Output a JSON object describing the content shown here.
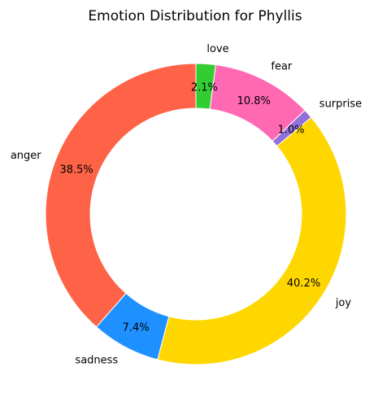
{
  "chart_data": {
    "type": "pie",
    "style": "donut",
    "title": "Emotion Distribution for Phyllis",
    "start_angle_deg": 90,
    "direction": "counterclockwise",
    "slices": [
      {
        "label": "anger",
        "value": 38.5,
        "pct_label": "38.5%",
        "color": "#FF6347"
      },
      {
        "label": "sadness",
        "value": 7.4,
        "pct_label": "7.4%",
        "color": "#1E90FF"
      },
      {
        "label": "joy",
        "value": 40.2,
        "pct_label": "40.2%",
        "color": "#FFD700"
      },
      {
        "label": "surprise",
        "value": 1.0,
        "pct_label": "1.0%",
        "color": "#9370DB"
      },
      {
        "label": "fear",
        "value": 10.8,
        "pct_label": "10.8%",
        "color": "#FF69B4"
      },
      {
        "label": "love",
        "value": 2.1,
        "pct_label": "2.1%",
        "color": "#32CD32"
      }
    ]
  }
}
